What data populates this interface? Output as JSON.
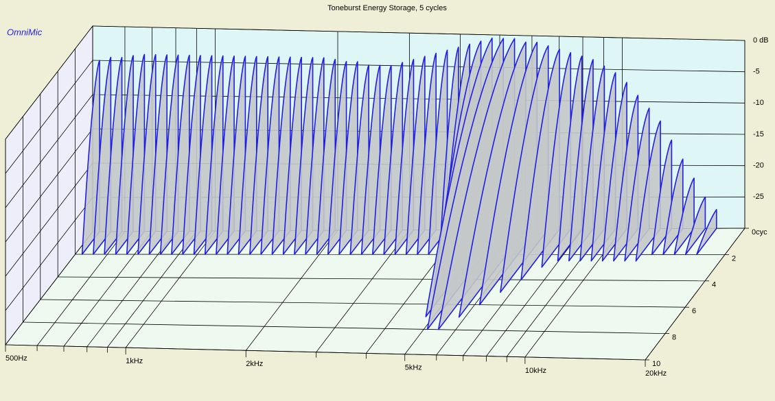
{
  "chart_data": {
    "type": "waterfall",
    "title": "Toneburst Energy Storage, 5 cycles",
    "watermark": "OmniMic",
    "x": [
      520,
      554,
      590,
      629,
      670,
      714,
      761,
      811,
      864,
      920,
      981,
      1045,
      1113,
      1186,
      1264,
      1347,
      1435,
      1529,
      1629,
      1736,
      1849,
      1971,
      2100,
      2237,
      2384,
      2540,
      2706,
      2884,
      3072,
      3274,
      3488,
      3716,
      3960,
      4219,
      4496,
      4790,
      5104,
      5438,
      5795,
      6174,
      6579,
      7010,
      7469,
      7958,
      8480,
      9035,
      9627,
      10258,
      10930,
      11646,
      12409,
      13222,
      14088,
      15011,
      15994,
      17042
    ],
    "values": [
      -5,
      -4.5,
      -4.5,
      -4.2,
      -4,
      -4,
      -4,
      -4,
      -4,
      -4,
      -4,
      -4,
      -4,
      -4,
      -4,
      -4,
      -4,
      -4,
      -4,
      -4,
      -4,
      -4.2,
      -4.5,
      -4.5,
      -5,
      -5,
      -5,
      -4.5,
      -4,
      -3.5,
      -3,
      -2.5,
      -2,
      -1.5,
      -1,
      -0.5,
      -0.5,
      -0.5,
      -1,
      -1,
      -1.5,
      -2,
      -2.5,
      -3,
      -3.5,
      -4.5,
      -5.5,
      -7,
      -9,
      -11,
      -13,
      -16,
      -19,
      -22,
      -25,
      -27
    ],
    "decay": [
      2,
      2,
      2,
      2,
      2,
      2,
      2,
      2,
      2,
      2,
      2,
      2,
      2,
      2,
      2,
      2,
      2,
      2,
      2,
      2,
      2,
      2,
      2,
      2,
      2,
      2,
      2,
      2,
      2,
      2,
      2,
      2,
      2,
      3,
      5,
      7,
      8,
      8,
      7,
      6,
      5,
      4,
      3,
      2.5,
      2.5,
      2.5,
      2.5,
      2.5,
      2.5,
      2.5,
      2.5,
      2,
      2,
      2,
      2,
      2
    ],
    "color": "#1e1ee6",
    "fill_color": "#c4c8c8",
    "log_x": true,
    "xlim": [
      500,
      20000
    ],
    "xticks": [
      {
        "value": 500,
        "label": "500Hz"
      },
      {
        "value": 1000,
        "label": "1kHz"
      },
      {
        "value": 2000,
        "label": "2kHz"
      },
      {
        "value": 5000,
        "label": "5kHz"
      },
      {
        "value": 10000,
        "label": "10kHz"
      },
      {
        "value": 20000,
        "label": "20kHz"
      }
    ],
    "xgrid": [
      600,
      700,
      800,
      900,
      3000,
      4000,
      6000,
      7000,
      8000,
      9000
    ],
    "ylim": [
      0,
      10
    ],
    "yticks": [
      {
        "value": 0,
        "label": "0cyc"
      },
      2,
      4,
      6,
      8,
      10
    ],
    "zlim": [
      -30,
      0
    ],
    "zticks": [
      {
        "value": 0,
        "label": "0 dB"
      },
      -5,
      -10,
      -15,
      -20,
      -25
    ],
    "grid": true
  }
}
